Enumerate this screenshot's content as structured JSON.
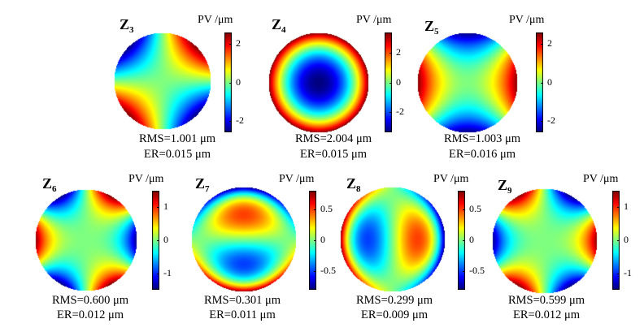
{
  "colorbar_stops": [
    "#00007f",
    "#0000ff",
    "#007fff",
    "#00ffff",
    "#7fff7f",
    "#ffff00",
    "#ff7f00",
    "#ff0000",
    "#7f0000"
  ],
  "panels": [
    {
      "id": "z3",
      "label_main": "Z",
      "label_sub": "3",
      "unit": "PV /μm",
      "range": [
        -2.6,
        2.6
      ],
      "ticks": [
        "2",
        "0",
        "-2"
      ],
      "tick_values": [
        2,
        0,
        -2
      ],
      "rms": "RMS=1.001 μm",
      "er": "ER=0.015 μm"
    },
    {
      "id": "z4",
      "label_main": "Z",
      "label_sub": "4",
      "unit": "PV /μm",
      "range": [
        -3.4,
        3.4
      ],
      "ticks": [
        "2",
        "0",
        "-2"
      ],
      "tick_values": [
        2,
        0,
        -2
      ],
      "rms": "RMS=2.004 μm",
      "er": "ER=0.015 μm"
    },
    {
      "id": "z5",
      "label_main": "Z",
      "label_sub": "5",
      "unit": "PV /μm",
      "range": [
        -2.6,
        2.6
      ],
      "ticks": [
        "2",
        "0",
        "-2"
      ],
      "tick_values": [
        2,
        0,
        -2
      ],
      "rms": "RMS=1.003 μm",
      "er": "ER=0.016 μm"
    },
    {
      "id": "z6",
      "label_main": "Z",
      "label_sub": "6",
      "unit": "PV /μm",
      "range": [
        -1.5,
        1.5
      ],
      "ticks": [
        "1",
        "0",
        "-1"
      ],
      "tick_values": [
        1,
        0,
        -1
      ],
      "rms": "RMS=0.600 μm",
      "er": "ER=0.012 μm"
    },
    {
      "id": "z7",
      "label_main": "Z",
      "label_sub": "7",
      "unit": "PV /μm",
      "range": [
        -0.8,
        0.8
      ],
      "ticks": [
        "0.5",
        "0",
        "-0.5"
      ],
      "tick_values": [
        0.5,
        0,
        -0.5
      ],
      "rms": "RMS=0.301 μm",
      "er": "ER=0.011 μm"
    },
    {
      "id": "z8",
      "label_main": "Z",
      "label_sub": "8",
      "unit": "PV /μm",
      "range": [
        -0.8,
        0.8
      ],
      "ticks": [
        "0.5",
        "0",
        "-0.5"
      ],
      "tick_values": [
        0.5,
        0,
        -0.5
      ],
      "rms": "RMS=0.299 μm",
      "er": "ER=0.009 μm"
    },
    {
      "id": "z9",
      "label_main": "Z",
      "label_sub": "9",
      "unit": "PV /μm",
      "range": [
        -1.5,
        1.5
      ],
      "ticks": [
        "1",
        "0",
        "-1"
      ],
      "tick_values": [
        1,
        0,
        -1
      ],
      "rms": "RMS=0.599 μm",
      "er": "ER=0.012 μm"
    }
  ]
}
